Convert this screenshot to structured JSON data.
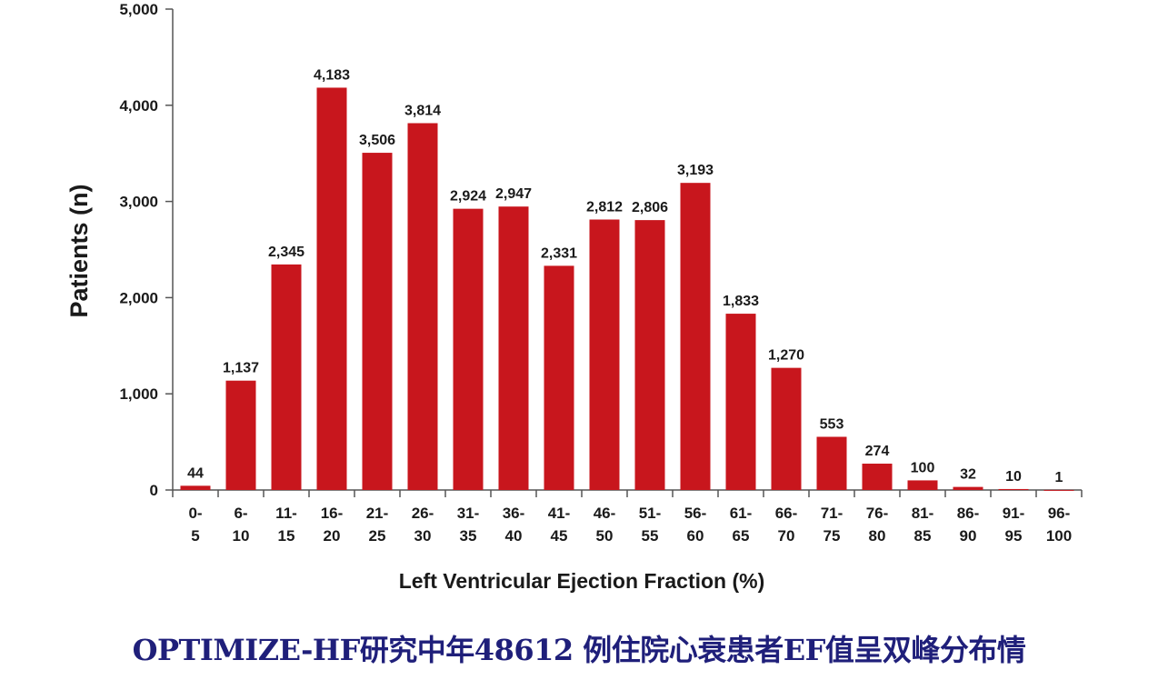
{
  "chart_data": {
    "type": "bar",
    "categories": [
      [
        "0-",
        "5"
      ],
      [
        "6-",
        "10"
      ],
      [
        "11-",
        "15"
      ],
      [
        "16-",
        "20"
      ],
      [
        "21-",
        "25"
      ],
      [
        "26-",
        "30"
      ],
      [
        "31-",
        "35"
      ],
      [
        "36-",
        "40"
      ],
      [
        "41-",
        "45"
      ],
      [
        "46-",
        "50"
      ],
      [
        "51-",
        "55"
      ],
      [
        "56-",
        "60"
      ],
      [
        "61-",
        "65"
      ],
      [
        "66-",
        "70"
      ],
      [
        "71-",
        "75"
      ],
      [
        "76-",
        "80"
      ],
      [
        "81-",
        "85"
      ],
      [
        "86-",
        "90"
      ],
      [
        "91-",
        "95"
      ],
      [
        "96-",
        "100"
      ]
    ],
    "values": [
      44,
      1137,
      2345,
      4183,
      3506,
      3814,
      2924,
      2947,
      2331,
      2812,
      2806,
      3193,
      1833,
      1270,
      553,
      274,
      100,
      32,
      10,
      1
    ],
    "data_labels": [
      "44",
      "1,137",
      "2,345",
      "4,183",
      "3,506",
      "3,814",
      "2,924",
      "2,947",
      "2,331",
      "2,812",
      "2,806",
      "3,193",
      "1,833",
      "1,270",
      "553",
      "274",
      "100",
      "32",
      "10",
      "1"
    ],
    "ylim": [
      0,
      5000
    ],
    "yticks": [
      0,
      1000,
      2000,
      3000,
      4000,
      5000
    ],
    "ytick_labels": [
      "0",
      "1,000",
      "2,000",
      "3,000",
      "4,000",
      "5,000"
    ],
    "xlabel": "Left Ventricular Ejection Fraction (%)",
    "ylabel": "Patients (n)",
    "bar_color": "#c8161d",
    "grid": false,
    "legend": "none"
  },
  "caption": "OPTIMIZE-HF研究中年48612 例住院心衰患者EF值呈双峰分布情"
}
